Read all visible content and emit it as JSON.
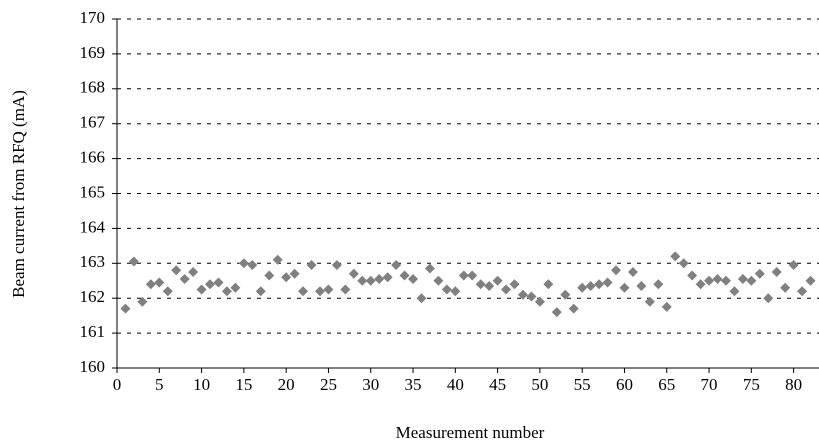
{
  "chart_data": {
    "type": "scatter",
    "x_label": "Measurement number",
    "y_label": "Beam current from RFQ (mA)",
    "x": [
      1,
      2,
      3,
      4,
      5,
      6,
      7,
      8,
      9,
      10,
      11,
      12,
      13,
      14,
      15,
      16,
      17,
      18,
      19,
      20,
      21,
      22,
      23,
      24,
      25,
      26,
      27,
      28,
      29,
      30,
      31,
      32,
      33,
      34,
      35,
      36,
      37,
      38,
      39,
      40,
      41,
      42,
      43,
      44,
      45,
      46,
      47,
      48,
      49,
      50,
      51,
      52,
      53,
      54,
      55,
      56,
      57,
      58,
      59,
      60,
      61,
      62,
      63,
      64,
      65,
      66,
      67,
      68,
      69,
      70,
      71,
      72,
      73,
      74,
      75,
      76,
      77,
      78,
      79,
      80,
      81,
      82
    ],
    "values": [
      161.7,
      163.05,
      161.9,
      162.4,
      162.45,
      162.2,
      162.8,
      162.55,
      162.75,
      162.25,
      162.4,
      162.45,
      162.2,
      162.3,
      163.0,
      162.95,
      162.2,
      162.65,
      163.1,
      162.6,
      162.7,
      162.2,
      162.95,
      162.2,
      162.25,
      162.95,
      162.25,
      162.7,
      162.5,
      162.5,
      162.55,
      162.6,
      162.95,
      162.65,
      162.55,
      162.0,
      162.85,
      162.5,
      162.25,
      162.2,
      162.65,
      162.65,
      162.4,
      162.35,
      162.5,
      162.25,
      162.4,
      162.1,
      162.05,
      161.9,
      162.4,
      161.6,
      162.1,
      161.7,
      162.3,
      162.35,
      162.4,
      162.45,
      162.8,
      162.3,
      162.75,
      162.35,
      161.9,
      162.4,
      161.75,
      163.2,
      163.0,
      162.65,
      162.4,
      162.5,
      162.55,
      162.5,
      162.2,
      162.55,
      162.5,
      162.7,
      162.0,
      162.75,
      162.3,
      162.95,
      162.2,
      162.5
    ],
    "color": "#808080",
    "xlim": [
      0,
      83
    ],
    "xticks": [
      0,
      5,
      10,
      15,
      20,
      25,
      30,
      35,
      40,
      45,
      50,
      55,
      60,
      65,
      70,
      75,
      80
    ],
    "ylim": [
      160,
      170
    ],
    "yticks": [
      160,
      161,
      162,
      163,
      164,
      165,
      166,
      167,
      168,
      169,
      170
    ],
    "grid": true
  }
}
